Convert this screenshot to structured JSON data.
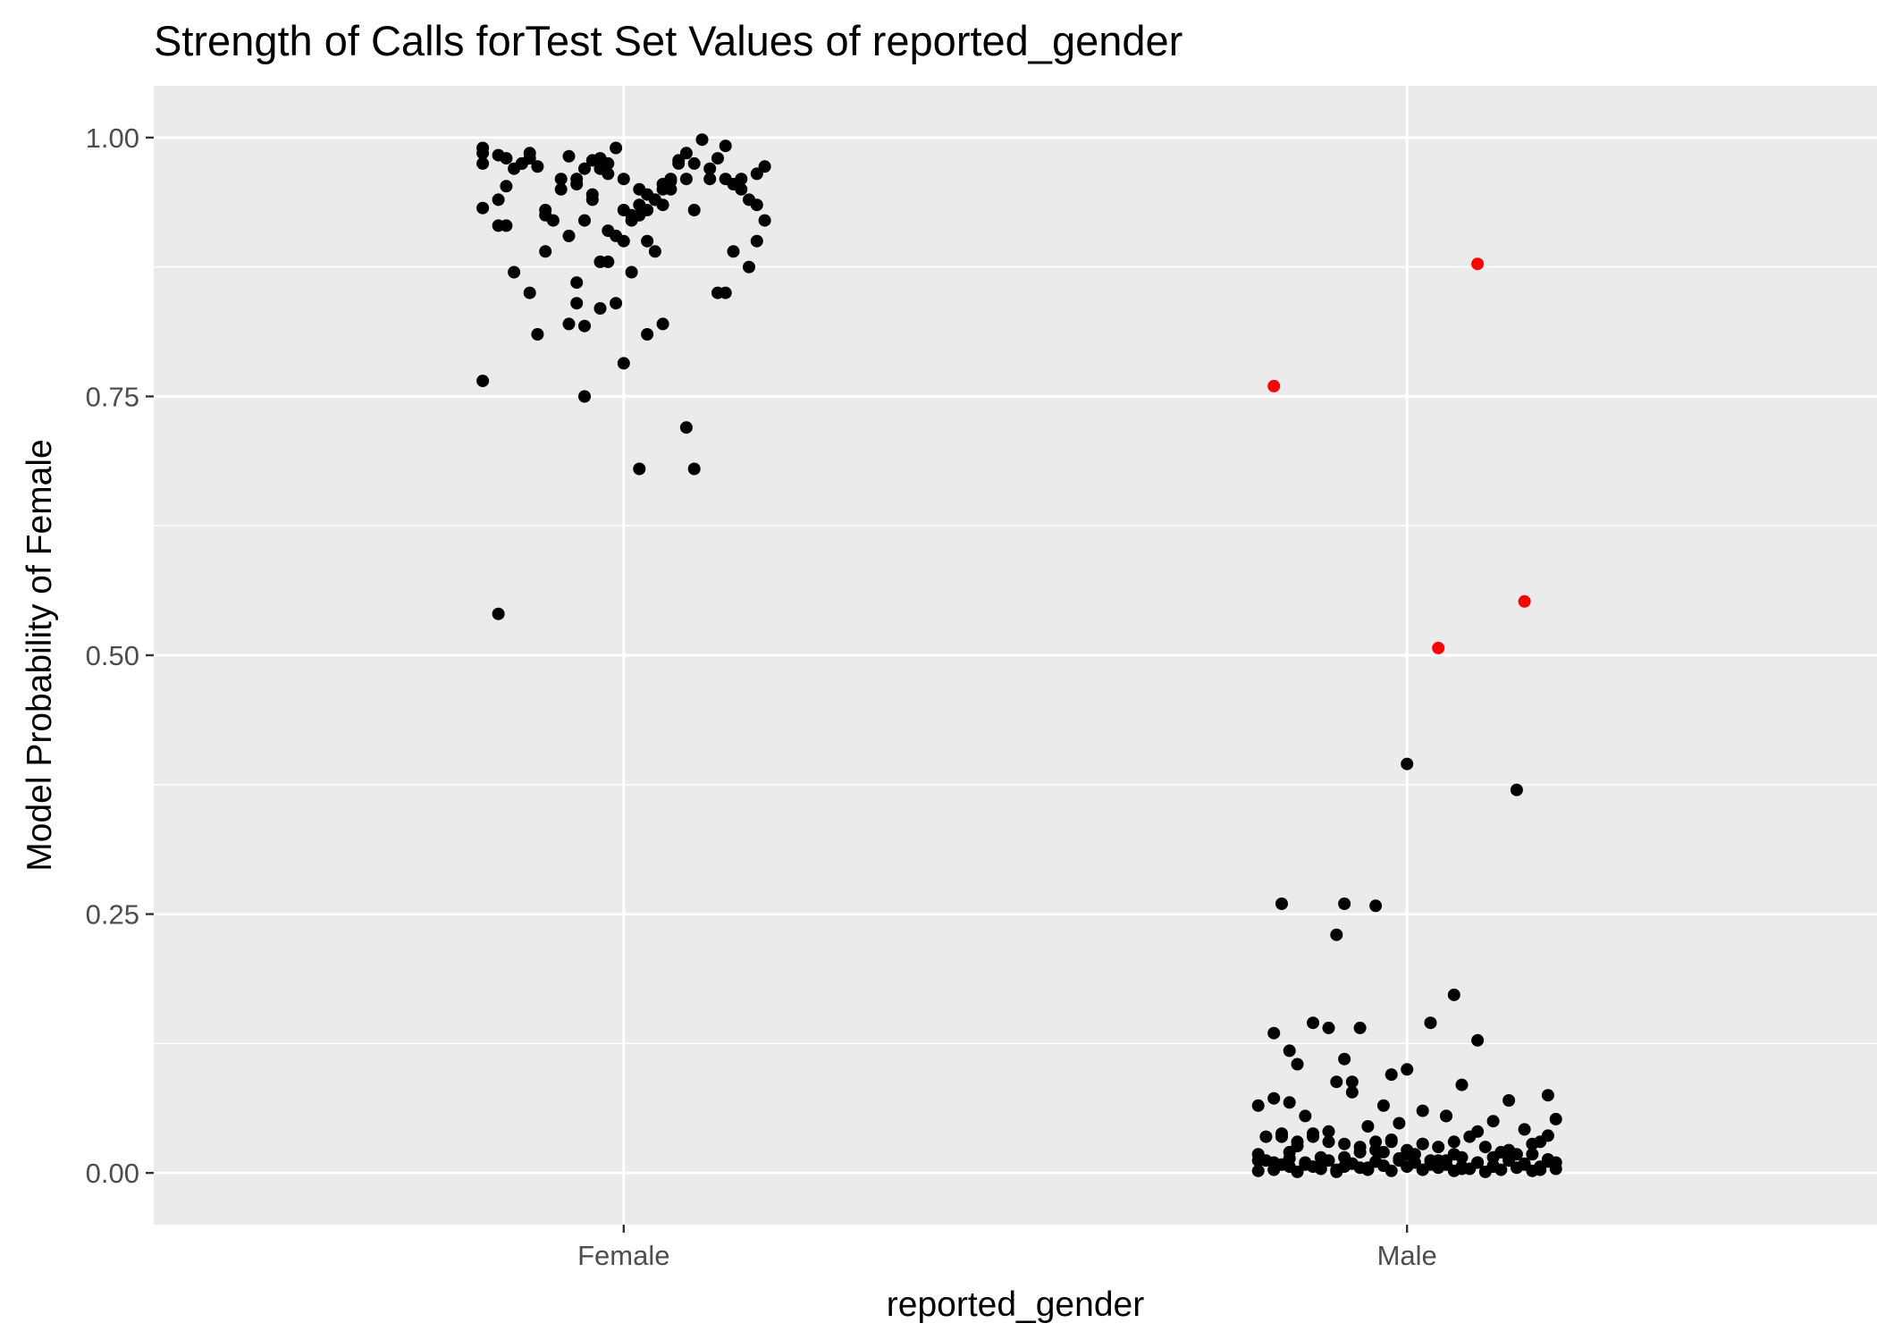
{
  "chart_data": {
    "type": "scatter",
    "title": "Strength of Calls forTest Set Values of reported_gender",
    "xlabel": "reported_gender",
    "ylabel": "Model Probability of Female",
    "categories": [
      "Female",
      "Male"
    ],
    "ylim": [
      -0.05,
      1.05
    ],
    "yticks": [
      {
        "value": 0.0,
        "label": "0.00"
      },
      {
        "value": 0.25,
        "label": "0.25"
      },
      {
        "value": 0.5,
        "label": "0.50"
      },
      {
        "value": 0.75,
        "label": "0.75"
      },
      {
        "value": 1.0,
        "label": "1.00"
      }
    ],
    "grid": true,
    "legend": "none",
    "colors": {
      "panel": "#ebebeb",
      "grid": "#ffffff",
      "point": "#000000",
      "misclassified": "#ff0000",
      "tick": "#4d4d4d"
    },
    "series": [
      {
        "category": "Female",
        "color": "#000000",
        "jitter": [
          -0.18,
          -0.18,
          -0.16,
          -0.18,
          -0.15,
          -0.14,
          -0.16,
          -0.15,
          -0.13,
          -0.12,
          -0.11,
          -0.1,
          -0.08,
          -0.07,
          -0.06,
          -0.05,
          -0.04,
          -0.03,
          -0.02,
          -0.01,
          0.0,
          0.01,
          0.02,
          0.03,
          0.04,
          0.05,
          0.06,
          0.07,
          0.08,
          0.09,
          0.1,
          0.11,
          0.12,
          0.13,
          0.14,
          0.15,
          0.16,
          0.17,
          0.18,
          -0.18,
          -0.15,
          -0.13,
          -0.12,
          -0.08,
          -0.06,
          -0.04,
          -0.03,
          -0.02,
          0.0,
          0.02,
          0.03,
          0.04,
          0.05,
          0.06,
          0.07,
          0.09,
          0.11,
          0.13,
          0.15,
          0.17,
          -0.16,
          -0.14,
          -0.1,
          -0.07,
          -0.05,
          -0.02,
          -0.01,
          0.01,
          0.03,
          0.05,
          0.08,
          0.12,
          0.14,
          0.16,
          0.18,
          -0.12,
          -0.09,
          -0.06,
          -0.03,
          0.0,
          0.02,
          0.04,
          -0.11,
          -0.07,
          -0.05,
          -0.03,
          -0.01,
          0.01,
          0.03,
          0.05,
          0.13,
          0.17,
          -0.18,
          -0.05,
          0.0,
          0.02,
          0.08,
          0.09,
          -0.16,
          -0.02,
          0.06,
          -0.1,
          -0.04,
          -0.06
        ],
        "y": [
          0.99,
          0.975,
          0.983,
          0.932,
          0.953,
          0.97,
          0.94,
          0.915,
          0.975,
          0.98,
          0.972,
          0.925,
          0.95,
          0.982,
          0.96,
          0.97,
          0.978,
          0.98,
          0.965,
          0.99,
          0.93,
          0.92,
          0.935,
          0.945,
          0.94,
          0.955,
          0.96,
          0.978,
          0.985,
          0.975,
          0.998,
          0.97,
          0.98,
          0.992,
          0.955,
          0.95,
          0.94,
          0.965,
          0.972,
          0.985,
          0.98,
          0.975,
          0.985,
          0.96,
          0.955,
          0.945,
          0.97,
          0.975,
          0.96,
          0.925,
          0.93,
          0.94,
          0.95,
          0.958,
          0.975,
          0.93,
          0.96,
          0.96,
          0.96,
          0.935,
          0.915,
          0.87,
          0.89,
          0.905,
          0.92,
          0.91,
          0.905,
          0.925,
          0.9,
          0.935,
          0.96,
          0.85,
          0.89,
          0.875,
          0.92,
          0.85,
          0.92,
          0.86,
          0.88,
          0.9,
          0.95,
          0.89,
          0.81,
          0.82,
          0.818,
          0.835,
          0.84,
          0.87,
          0.81,
          0.82,
          0.85,
          0.9,
          0.765,
          0.75,
          0.782,
          0.68,
          0.72,
          0.68,
          0.54,
          0.88,
          0.95,
          0.93,
          0.94,
          0.84
        ]
      },
      {
        "category": "Male",
        "color": "#000000",
        "jitter": [
          -0.19,
          -0.18,
          -0.17,
          -0.16,
          -0.15,
          -0.14,
          -0.13,
          -0.12,
          -0.11,
          -0.1,
          -0.09,
          -0.08,
          -0.07,
          -0.06,
          -0.05,
          -0.04,
          -0.03,
          -0.02,
          -0.01,
          0.0,
          0.01,
          0.02,
          0.03,
          0.04,
          0.05,
          0.06,
          0.07,
          0.08,
          0.09,
          0.1,
          0.11,
          0.12,
          0.13,
          0.14,
          0.15,
          0.16,
          0.17,
          0.18,
          0.19,
          -0.19,
          -0.17,
          -0.15,
          -0.13,
          -0.11,
          -0.09,
          -0.07,
          -0.05,
          -0.03,
          -0.01,
          0.01,
          0.03,
          0.05,
          0.07,
          0.09,
          0.11,
          0.13,
          0.15,
          0.17,
          0.19,
          -0.18,
          -0.16,
          -0.14,
          -0.12,
          -0.1,
          -0.08,
          -0.06,
          -0.04,
          -0.02,
          0.0,
          0.02,
          0.04,
          0.06,
          0.08,
          0.1,
          0.12,
          0.14,
          0.16,
          0.18,
          -0.19,
          -0.17,
          -0.15,
          -0.13,
          -0.09,
          -0.07,
          -0.05,
          -0.03,
          -0.01,
          0.02,
          0.05,
          0.07,
          0.09,
          0.11,
          0.13,
          0.15,
          0.17,
          0.19,
          -0.19,
          -0.16,
          -0.15,
          -0.14,
          -0.12,
          -0.1,
          -0.08,
          -0.06,
          -0.04,
          -0.02,
          0.0,
          0.02,
          0.04,
          0.06,
          0.11,
          0.13,
          0.16,
          0.18,
          -0.17,
          -0.15,
          -0.14,
          -0.12,
          -0.1,
          -0.08,
          -0.06,
          -0.02,
          0.0,
          0.03,
          0.05,
          0.06,
          0.09,
          0.18,
          -0.16,
          -0.04,
          -0.09,
          -0.08,
          -0.07,
          0.0,
          0.07,
          0.14
        ],
        "y": [
          0.002,
          0.012,
          0.003,
          0.008,
          0.014,
          0.001,
          0.01,
          0.006,
          0.004,
          0.012,
          0.001,
          0.006,
          0.009,
          0.005,
          0.003,
          0.011,
          0.007,
          0.002,
          0.014,
          0.006,
          0.01,
          0.003,
          0.012,
          0.005,
          0.008,
          0.002,
          0.006,
          0.004,
          0.01,
          0.001,
          0.007,
          0.003,
          0.012,
          0.005,
          0.009,
          0.002,
          0.006,
          0.011,
          0.004,
          0.012,
          0.01,
          0.006,
          0.008,
          0.015,
          0.003,
          0.009,
          0.005,
          0.02,
          0.012,
          0.018,
          0.008,
          0.012,
          0.004,
          0.01,
          0.006,
          0.015,
          0.008,
          0.003,
          0.01,
          0.035,
          0.038,
          0.03,
          0.035,
          0.04,
          0.028,
          0.025,
          0.03,
          0.032,
          0.022,
          0.028,
          0.025,
          0.03,
          0.035,
          0.025,
          0.02,
          0.018,
          0.028,
          0.036,
          0.065,
          0.072,
          0.068,
          0.055,
          0.088,
          0.078,
          0.045,
          0.065,
          0.048,
          0.06,
          0.055,
          0.085,
          0.04,
          0.05,
          0.07,
          0.042,
          0.03,
          0.052,
          0.018,
          0.035,
          0.02,
          0.026,
          0.038,
          0.03,
          0.015,
          0.02,
          0.022,
          0.03,
          0.018,
          0.028,
          0.012,
          0.018,
          0.015,
          0.022,
          0.018,
          0.013,
          0.135,
          0.118,
          0.105,
          0.145,
          0.14,
          0.11,
          0.14,
          0.095,
          0.1,
          0.145,
          0.055,
          0.172,
          0.128,
          0.075,
          0.26,
          0.258,
          0.23,
          0.26,
          0.088,
          0.395,
          0.015,
          0.37
        ]
      },
      {
        "category": "Male",
        "color": "#ff0000",
        "jitter": [
          -0.17,
          0.09,
          0.04,
          0.15
        ],
        "y": [
          0.76,
          0.878,
          0.507,
          0.552
        ]
      }
    ]
  }
}
